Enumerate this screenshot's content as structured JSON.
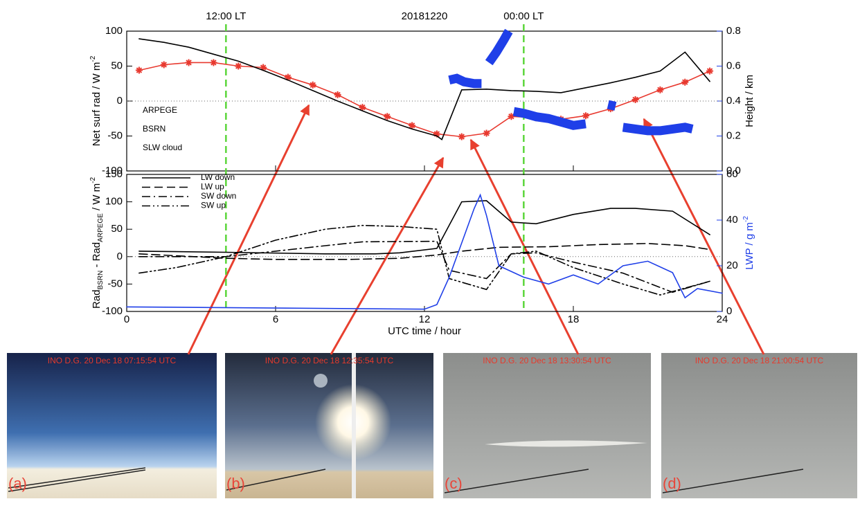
{
  "chart_data": [
    {
      "type": "line",
      "title": "20181220",
      "ylabel": [
        "Net surf rad / W m",
        "-2"
      ],
      "y2label": "Height / km",
      "xlim": [
        0,
        24
      ],
      "xticks": [
        0,
        6,
        12,
        18,
        24
      ],
      "ylim": [
        -100,
        100
      ],
      "yticks": [
        -100,
        -50,
        0,
        50,
        100
      ],
      "y2lim": [
        0,
        0.8
      ],
      "y2ticks": [
        {
          "value": 0,
          "label": "0.0"
        },
        {
          "value": 0.2,
          "label": "0.2"
        },
        {
          "value": 0.4,
          "label": "0.4"
        },
        {
          "value": 0.6,
          "label": "0.6"
        },
        {
          "value": 0.8,
          "label": "0.8"
        }
      ],
      "y2color": "#1f3fe8",
      "annotations": [
        {
          "x": 4,
          "text": "12:00 LT"
        },
        {
          "x": 16,
          "text": "00:00 LT"
        }
      ],
      "annotation_color": "#5bd63a",
      "series": [
        {
          "name": "ARPEGE",
          "color": "#e8392f",
          "linestyle": "solid",
          "marker": "asterisk",
          "x": [
            0.5,
            1.5,
            2.5,
            3.5,
            4.5,
            5.5,
            6.5,
            7.5,
            8.5,
            9.5,
            10.5,
            11.5,
            12.5,
            13.5,
            14.5,
            15.5,
            16.5,
            17.5,
            18.5,
            19.5,
            20.5,
            21.5,
            22.5,
            23.5
          ],
          "values": [
            44,
            52,
            55,
            55,
            50,
            48,
            34,
            23,
            9,
            -9,
            -22,
            -35,
            -47,
            -51,
            -46,
            -22,
            -24,
            -26,
            -21,
            -11,
            2,
            16,
            27,
            43
          ]
        },
        {
          "name": "BSRN",
          "color": "#000000",
          "linestyle": "solid",
          "x": [
            0.5,
            1.5,
            2.5,
            3.5,
            4.5,
            5.5,
            6.5,
            7.5,
            8.5,
            9.5,
            10.5,
            11.5,
            12.5,
            12.7,
            13.5,
            14.5,
            15.5,
            16.5,
            17.5,
            18.5,
            19.5,
            20.5,
            21.5,
            22.5,
            23.5
          ],
          "values": [
            89,
            84,
            77,
            67,
            57,
            44,
            30,
            15,
            0,
            -14,
            -28,
            -40,
            -50,
            -55,
            16,
            17,
            15,
            14,
            12,
            19,
            26,
            34,
            43,
            70,
            28
          ]
        },
        {
          "name": "SLW cloud",
          "color": "#1f3fe8",
          "linestyle": "thick",
          "axis": "y2",
          "x": [
            13.0,
            13.3,
            13.6,
            14.0,
            14.3,
            14.45,
            14.6,
            14.9,
            15.2,
            15.4,
            15.5,
            15.6,
            16.0,
            16.5,
            17.0,
            17.5,
            18.0,
            18.5,
            19.0,
            19.4,
            19.7,
            19.85,
            20.0,
            20.5,
            21.0,
            21.5,
            22.0,
            22.5,
            22.8
          ],
          "values": [
            0.52,
            0.53,
            0.51,
            0.5,
            0.5,
            null,
            0.62,
            0.68,
            0.75,
            0.8,
            null,
            0.34,
            0.33,
            0.31,
            0.3,
            0.28,
            0.26,
            0.27,
            null,
            0.38,
            0.37,
            null,
            0.25,
            0.24,
            0.23,
            0.23,
            0.24,
            0.25,
            0.24
          ]
        }
      ]
    },
    {
      "type": "line",
      "xlabel": "UTC time / hour",
      "ylabel": [
        "Rad",
        "BSRN",
        " - Rad",
        "ARPEGE",
        " / W m",
        "-2"
      ],
      "y2label": [
        "LWP / g m",
        "-2"
      ],
      "xlim": [
        0,
        24
      ],
      "xticks": [
        0,
        6,
        12,
        18,
        24
      ],
      "ylim": [
        -100,
        150
      ],
      "yticks": [
        -100,
        -50,
        0,
        50,
        100,
        150
      ],
      "y2lim": [
        0,
        60
      ],
      "y2ticks": [
        0,
        20,
        40,
        60
      ],
      "y2color": "#1f3fe8",
      "series": [
        {
          "name": "LW down",
          "color": "#000000",
          "linestyle": "solid",
          "x": [
            0.5,
            4,
            8,
            10,
            11,
            12.5,
            13.5,
            14.5,
            15.5,
            16.5,
            18,
            19.5,
            20.5,
            22,
            23.5
          ],
          "values": [
            10,
            8,
            5,
            5,
            7,
            15,
            100,
            102,
            63,
            60,
            77,
            88,
            88,
            83,
            40
          ]
        },
        {
          "name": "LW up",
          "color": "#000000",
          "linestyle": "dashed",
          "x": [
            0.5,
            4,
            6,
            9,
            11,
            12.5,
            13.5,
            15,
            17,
            19,
            21,
            22.5,
            23.5
          ],
          "values": [
            5,
            -3,
            -5,
            -5,
            -3,
            3,
            10,
            17,
            18,
            22,
            24,
            20,
            13
          ]
        },
        {
          "name": "SW down",
          "color": "#000000",
          "linestyle": "dashdot",
          "x": [
            0.5,
            4,
            6,
            8,
            9.5,
            12.5,
            13,
            14.5,
            15.5,
            16.5,
            18,
            20,
            22,
            23.5
          ],
          "values": [
            0,
            0,
            10,
            20,
            27,
            28,
            -25,
            -40,
            5,
            7,
            -10,
            -30,
            -65,
            -45
          ]
        },
        {
          "name": "SW up",
          "color": "#000000",
          "linestyle": "dashdotdot",
          "x": [
            0.5,
            2,
            4,
            6,
            8,
            9.5,
            11,
            12.5,
            13,
            14.5,
            15.5,
            16.5,
            18,
            20,
            21.5,
            23.5
          ],
          "values": [
            -30,
            -20,
            0,
            30,
            50,
            57,
            55,
            50,
            -40,
            -60,
            5,
            10,
            -20,
            -50,
            -70,
            -45
          ]
        },
        {
          "name": "LWP",
          "color": "#1f3fe8",
          "linestyle": "solid",
          "axis": "y2",
          "legend": false,
          "x": [
            0,
            6,
            12,
            12.5,
            13,
            13.5,
            14,
            14.25,
            14.5,
            15,
            16,
            17,
            18,
            19,
            20,
            21,
            22,
            22.5,
            23,
            24
          ],
          "values": [
            2,
            1.5,
            1,
            3,
            15,
            30,
            45,
            51,
            42,
            20,
            15,
            12,
            16,
            12,
            20,
            22,
            17,
            6,
            10,
            8
          ]
        }
      ]
    }
  ],
  "photos": [
    {
      "caption": "INO D.G.   20 Dec 18   07:15:54   UTC",
      "tag": "(a)"
    },
    {
      "caption": "INO D.G.   20 Dec 18   12:35:54   UTC",
      "tag": "(b)"
    },
    {
      "caption": "INO D.G.   20 Dec 18   13:30:54   UTC",
      "tag": "(c)"
    },
    {
      "caption": "INO D.G.   20 Dec 18   21:00:54   UTC",
      "tag": "(d)"
    }
  ]
}
